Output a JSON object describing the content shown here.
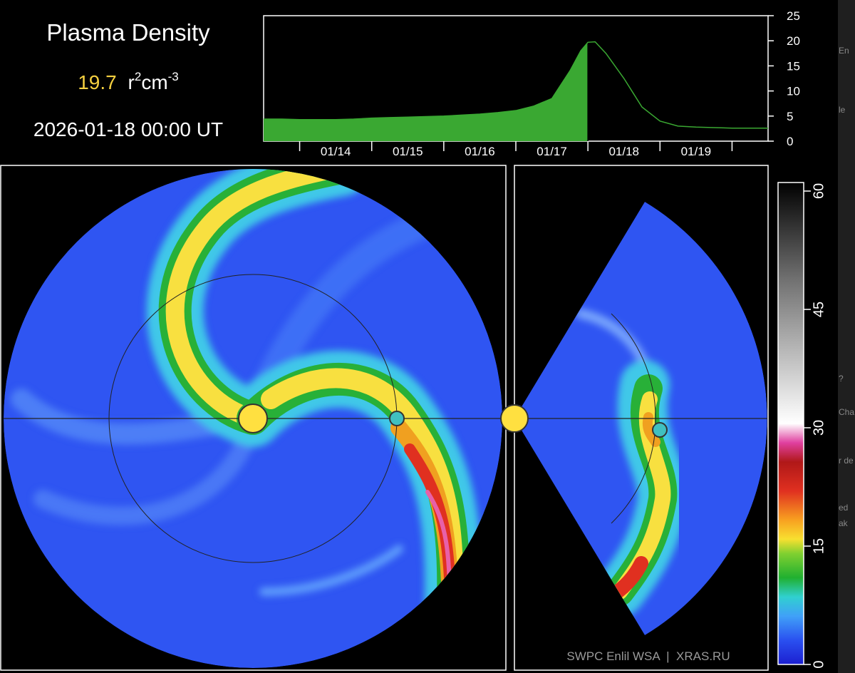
{
  "header": {
    "title": "Plasma Density",
    "value": "19.7",
    "unit_parts": [
      "r",
      "2",
      "cm",
      "-3"
    ],
    "timestamp": "2026-01-18 00:00 UT"
  },
  "chart_data": {
    "type": "area",
    "color": "#3aa832",
    "x": [
      13.5,
      13.75,
      14,
      14.25,
      14.5,
      14.75,
      15,
      15.25,
      15.5,
      15.75,
      16,
      16.25,
      16.5,
      16.75,
      17,
      17.25,
      17.5,
      17.75,
      17.9,
      18,
      18.1,
      18.25,
      18.5,
      18.75,
      19,
      19.25,
      19.5,
      19.75,
      20,
      20.25,
      20.5
    ],
    "values": [
      4.4,
      4.4,
      4.3,
      4.3,
      4.3,
      4.4,
      4.6,
      4.7,
      4.8,
      4.9,
      5.0,
      5.2,
      5.4,
      5.7,
      6.1,
      7.0,
      8.5,
      14,
      18,
      19.7,
      19.8,
      17.5,
      12.5,
      6.8,
      4.0,
      3.0,
      2.8,
      2.7,
      2.6,
      2.6,
      2.6
    ],
    "xlim": [
      13.5,
      20.5
    ],
    "xticks": [
      {
        "value": 14.5,
        "label": "01/14"
      },
      {
        "value": 15.5,
        "label": "01/15"
      },
      {
        "value": 16.5,
        "label": "01/16"
      },
      {
        "value": 17.5,
        "label": "01/17"
      },
      {
        "value": 18.5,
        "label": "01/18"
      },
      {
        "value": 19.5,
        "label": "01/19"
      }
    ],
    "x_minor_ticks": [
      14,
      15,
      16,
      17,
      18,
      19,
      20
    ],
    "ylim": [
      0,
      25
    ],
    "yticks": [
      0,
      5,
      10,
      15,
      20,
      25
    ],
    "fill_until": 18
  },
  "colorbar": {
    "lim": [
      0,
      60
    ],
    "ticks": [
      0,
      15,
      30,
      45,
      60
    ]
  },
  "credit": "SWPC Enlil WSA  |  XRAS.RU",
  "background_fragments": [
    "En",
    "le",
    "?",
    "Cha",
    "r de",
    "ed",
    "ak"
  ]
}
